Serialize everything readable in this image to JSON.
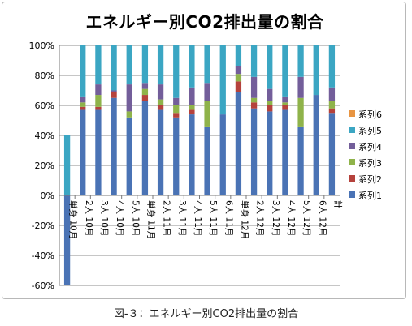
{
  "chart_data": {
    "type": "bar",
    "stacked": "percent",
    "title": "エネルギー別CO2排出量の割合",
    "ylim": [
      -0.6,
      1.0
    ],
    "yticks": [
      "-60%",
      "-40%",
      "-20%",
      "0%",
      "20%",
      "40%",
      "60%",
      "80%",
      "100%"
    ],
    "ytick_values": [
      -0.6,
      -0.4,
      -0.2,
      0,
      0.2,
      0.4,
      0.6,
      0.8,
      1.0
    ],
    "grid": true,
    "legend_position": "right",
    "categories": [
      "単身 10月",
      "2人 10月",
      "3人 10月",
      "4人 10月",
      "5人 10月",
      "単身 11月",
      "2人 11月",
      "3人 11月",
      "4人 11月",
      "5人 11月",
      "6人 11月",
      "単身 12月",
      "2人 12月",
      "3人 12月",
      "4人 12月",
      "5人 12月",
      "6人 12月",
      "計"
    ],
    "series": [
      {
        "name": "系列1",
        "color": "#4a73b5",
        "values": [
          -0.6,
          0.57,
          0.57,
          0.65,
          0.52,
          0.63,
          0.57,
          0.52,
          0.54,
          0.46,
          0.54,
          0.69,
          0.58,
          0.56,
          0.57,
          0.46,
          0.67,
          0.55
        ]
      },
      {
        "name": "系列2",
        "color": "#b5423c",
        "values": [
          0,
          0.02,
          0.02,
          0.04,
          0,
          0.04,
          0.03,
          0.03,
          0.03,
          0,
          0,
          0.07,
          0.04,
          0.04,
          0.03,
          0,
          0,
          0.03
        ]
      },
      {
        "name": "系列3",
        "color": "#8fb34a",
        "values": [
          0,
          0.03,
          0.08,
          0,
          0.04,
          0.04,
          0.04,
          0.05,
          0.03,
          0.17,
          0,
          0.05,
          0.03,
          0.03,
          0.02,
          0.19,
          0,
          0.05
        ]
      },
      {
        "name": "系列4",
        "color": "#735e9a",
        "values": [
          0,
          0.04,
          0.07,
          0.01,
          0.18,
          0.04,
          0.1,
          0.05,
          0.12,
          0.12,
          0,
          0.05,
          0.14,
          0.08,
          0.04,
          0.14,
          0,
          0.09
        ]
      },
      {
        "name": "系列5",
        "color": "#3ba6c3",
        "values": [
          0.4,
          0.34,
          0.26,
          0.3,
          0.26,
          0.25,
          0.26,
          0.35,
          0.28,
          0.25,
          0.46,
          0.14,
          0.21,
          0.29,
          0.34,
          0.21,
          0.33,
          0.28
        ]
      },
      {
        "name": "系列6",
        "color": "#e89542",
        "values": [
          0,
          0,
          0,
          0,
          0,
          0,
          0,
          0,
          0,
          0,
          0,
          0,
          0,
          0,
          0,
          0,
          0,
          0
        ]
      }
    ]
  },
  "caption": "図-３：エネルギー別CO2排出量の割合"
}
